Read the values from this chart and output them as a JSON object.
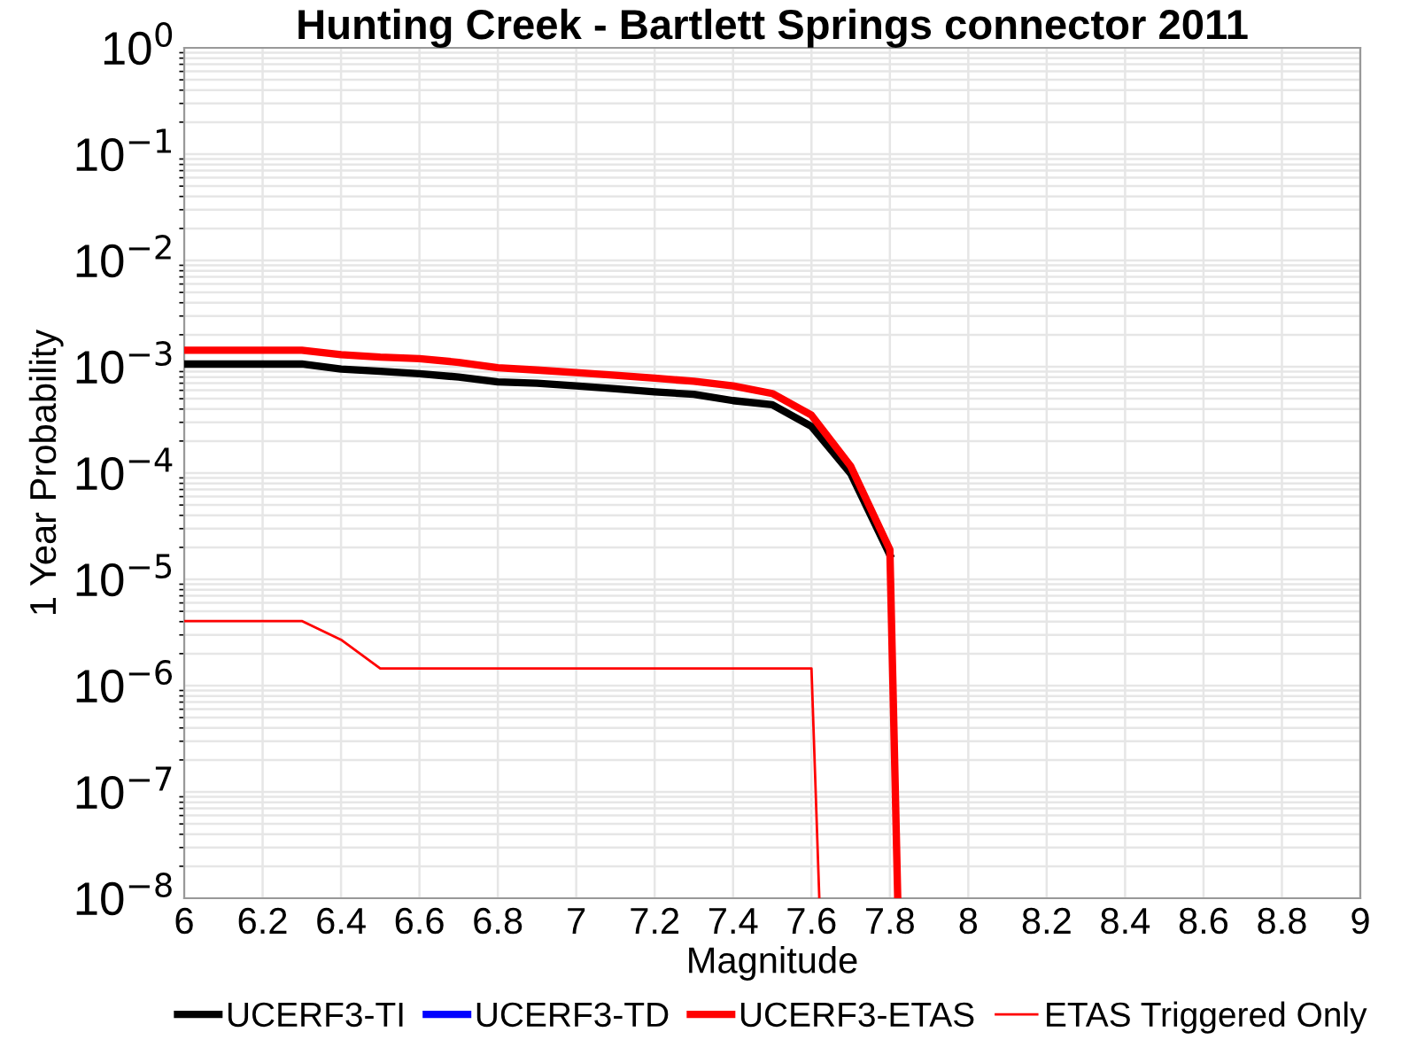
{
  "chart_data": {
    "type": "line",
    "title": "Hunting Creek - Bartlett Springs connector 2011",
    "xlabel": "Magnitude",
    "ylabel": "1 Year Probability",
    "log": "y",
    "grid": true,
    "legend": "bottom",
    "marker": "none",
    "line_style": "solid",
    "xlim": [
      6,
      9
    ],
    "xticks": [
      6,
      6.2,
      6.4,
      6.6,
      6.8,
      7,
      7.2,
      7.4,
      7.6,
      7.8,
      8,
      8.2,
      8.4,
      8.6,
      8.8,
      9
    ],
    "ylim": [
      1e-08,
      1
    ],
    "yticks": [
      {
        "value": 1e-08,
        "label": "10$^{−8}$"
      },
      {
        "value": 1e-07,
        "label": "10$^{−7}$"
      },
      {
        "value": 1e-06,
        "label": "10$^{−6}$"
      },
      {
        "value": 1e-05,
        "label": "10$^{−5}$"
      },
      {
        "value": 0.0001,
        "label": "10$^{−4}$"
      },
      {
        "value": 0.001,
        "label": "10$^{−3}$"
      },
      {
        "value": 0.01,
        "label": "10$^{−2}$"
      },
      {
        "value": 0.1,
        "label": "10$^{−1}$"
      },
      {
        "value": 1,
        "label": "10$^{0}$"
      }
    ],
    "series": [
      {
        "name": "UCERF3-TI",
        "color": "#000000",
        "x": [
          6.0,
          6.1,
          6.2,
          6.3,
          6.4,
          6.5,
          6.6,
          6.7,
          6.8,
          6.9,
          7.0,
          7.1,
          7.2,
          7.3,
          7.4,
          7.5,
          7.6,
          7.7,
          7.8
        ],
        "values": [
          0.00106,
          0.00106,
          0.00106,
          0.00106,
          0.00095,
          0.000905,
          0.00086,
          0.0008,
          0.00072,
          0.0007,
          0.00066,
          0.00062,
          0.00058,
          0.00055,
          0.00048,
          0.00044,
          0.000275,
          9.9e-05,
          1.7e-05
        ]
      },
      {
        "name": "UCERF3-TD",
        "color": "#0000ff"
      },
      {
        "name": "UCERF3-ETAS",
        "color": "#ff0000",
        "x": [
          6.0,
          6.1,
          6.2,
          6.3,
          6.4,
          6.5,
          6.6,
          6.7,
          6.8,
          6.9,
          7.0,
          7.1,
          7.2,
          7.3,
          7.4,
          7.5,
          7.6,
          7.7,
          7.8,
          7.82
        ],
        "values": [
          0.00143,
          0.00143,
          0.00143,
          0.00143,
          0.0013,
          0.00123,
          0.00119,
          0.0011,
          0.00098,
          0.00093,
          0.00088,
          0.00083,
          0.00078,
          0.00073,
          0.00066,
          0.00056,
          0.00035,
          0.000116,
          1.9e-05,
          1e-08
        ]
      },
      {
        "name": "ETAS Triggered Only",
        "color": "#ff0000",
        "x": [
          6.0,
          6.1,
          6.2,
          6.3,
          6.4,
          6.5,
          6.6,
          6.7,
          6.8,
          6.9,
          7.0,
          7.1,
          7.2,
          7.3,
          7.4,
          7.5,
          7.6,
          7.62
        ],
        "values": [
          4.05e-06,
          4.05e-06,
          4.05e-06,
          4.05e-06,
          2.7e-06,
          1.45e-06,
          1.45e-06,
          1.45e-06,
          1.45e-06,
          1.45e-06,
          1.45e-06,
          1.45e-06,
          1.45e-06,
          1.45e-06,
          1.45e-06,
          1.45e-06,
          1.45e-06,
          1e-08
        ]
      }
    ]
  }
}
